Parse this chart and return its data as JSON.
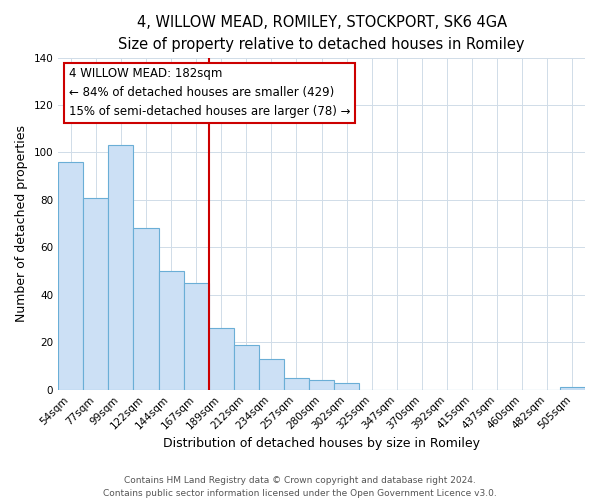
{
  "title": "4, WILLOW MEAD, ROMILEY, STOCKPORT, SK6 4GA",
  "subtitle": "Size of property relative to detached houses in Romiley",
  "xlabel": "Distribution of detached houses by size in Romiley",
  "ylabel": "Number of detached properties",
  "bar_labels": [
    "54sqm",
    "77sqm",
    "99sqm",
    "122sqm",
    "144sqm",
    "167sqm",
    "189sqm",
    "212sqm",
    "234sqm",
    "257sqm",
    "280sqm",
    "302sqm",
    "325sqm",
    "347sqm",
    "370sqm",
    "392sqm",
    "415sqm",
    "437sqm",
    "460sqm",
    "482sqm",
    "505sqm"
  ],
  "bar_values": [
    96,
    81,
    103,
    68,
    50,
    45,
    26,
    19,
    13,
    5,
    4,
    3,
    0,
    0,
    0,
    0,
    0,
    0,
    0,
    0,
    1
  ],
  "bar_color": "#cce0f5",
  "bar_edge_color": "#6aaed6",
  "vline_color": "#cc0000",
  "annotation_line1": "4 WILLOW MEAD: 182sqm",
  "annotation_line2": "← 84% of detached houses are smaller (429)",
  "annotation_line3": "15% of semi-detached houses are larger (78) →",
  "annotation_box_color": "#ffffff",
  "annotation_box_edge_color": "#cc0000",
  "ylim": [
    0,
    140
  ],
  "yticks": [
    0,
    20,
    40,
    60,
    80,
    100,
    120,
    140
  ],
  "footer1": "Contains HM Land Registry data © Crown copyright and database right 2024.",
  "footer2": "Contains public sector information licensed under the Open Government Licence v3.0.",
  "title_fontsize": 10.5,
  "subtitle_fontsize": 9.5,
  "axis_label_fontsize": 9,
  "tick_fontsize": 7.5,
  "annotation_fontsize": 8.5,
  "footer_fontsize": 6.5,
  "vline_index": 6
}
